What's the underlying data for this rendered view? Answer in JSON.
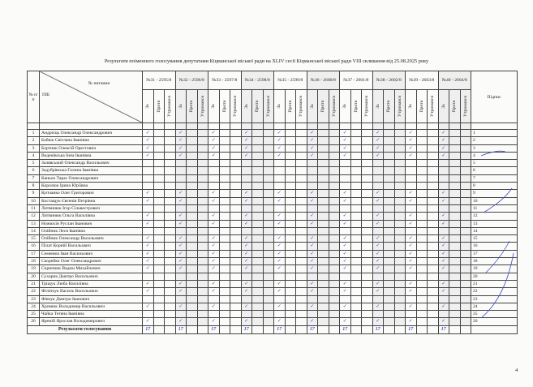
{
  "title": "Результати поіменного голосування депутатами Кіцманської міської ради на XLIV сесії Кіцманської міської ради VIII скликання від 25.08.2025 року",
  "header": {
    "num": "№ п/п",
    "pib": "ПІБ",
    "question": "№ питання",
    "signature": "Підпис",
    "sub": [
      "За",
      "Проти",
      "Утримався"
    ]
  },
  "questions": [
    "№31 - 2595/8",
    "№32 - 2596/8",
    "№33 - 2597/8",
    "№34 - 2598/8",
    "№35 - 2599/8",
    "№36 - 2600/8",
    "№37 - 2601/8",
    "№38 - 2602/8",
    "№39 - 2603/8",
    "№40 - 2604/8"
  ],
  "check_mark": "✓",
  "rows": [
    {
      "n": "1",
      "name": "Андрієць Олександр Олександрович",
      "vote": "za"
    },
    {
      "n": "2",
      "name": "Бабюк Світлана Іванівна",
      "vote": "za"
    },
    {
      "n": "3",
      "name": "Бортник Олексій Орестович",
      "vote": "za"
    },
    {
      "n": "4",
      "name": "Веденівська Інна Іванівна",
      "vote": "za"
    },
    {
      "n": "5",
      "name": "Залявський Олександр Васильович",
      "vote": ""
    },
    {
      "n": "6",
      "name": "Задубрівська Галина Іванівна",
      "vote": ""
    },
    {
      "n": "7",
      "name": "Каньок Тарас Олександрович",
      "vote": ""
    },
    {
      "n": "8",
      "name": "Королюк Ірина Юріївна",
      "vote": ""
    },
    {
      "n": "9",
      "name": "Купчанко Олег Григорович",
      "vote": "za"
    },
    {
      "n": "10",
      "name": "Костащук Євгенія Петрівна",
      "vote": "za"
    },
    {
      "n": "11",
      "name": "Литвинюк Ігор Сільвестрович",
      "vote": ""
    },
    {
      "n": "12",
      "name": "Литвинюк Ольга Василівна",
      "vote": "za"
    },
    {
      "n": "13",
      "name": "Ножюхін Руслан Іванович",
      "vote": "za"
    },
    {
      "n": "14",
      "name": "Олійник Леся Іванівна",
      "vote": ""
    },
    {
      "n": "15",
      "name": "Олійник Олександр Васильович",
      "vote": "za"
    },
    {
      "n": "16",
      "name": "Пілат Корній Васильович",
      "vote": "za"
    },
    {
      "n": "17",
      "name": "Семенюк Іван Васильович",
      "vote": "za"
    },
    {
      "n": "18",
      "name": "Скорейко Олег Олександрович",
      "vote": "za"
    },
    {
      "n": "19",
      "name": "Скрипник Вадим Михайлович",
      "vote": "za"
    },
    {
      "n": "20",
      "name": "Сухарик Дмитро Васильович",
      "vote": ""
    },
    {
      "n": "21",
      "name": "Тріщук Люба Василівна",
      "vote": "za"
    },
    {
      "n": "22",
      "name": "Філіпчук Василь Васильович",
      "vote": "za"
    },
    {
      "n": "23",
      "name": "Фівчук Дмитро Іванович",
      "vote": ""
    },
    {
      "n": "24",
      "name": "Хромюк Володимир Васильович",
      "vote": "za"
    },
    {
      "n": "25",
      "name": "Чайка Тетяна Іванівна",
      "vote": ""
    },
    {
      "n": "26",
      "name": "Яремій Ярослав Володимирович",
      "vote": "za"
    }
  ],
  "results_label": "Результати голосування",
  "results": [
    "17",
    "17",
    "17",
    "17",
    "17",
    "17",
    "17",
    "17",
    "17",
    "17"
  ],
  "page_number": "4"
}
